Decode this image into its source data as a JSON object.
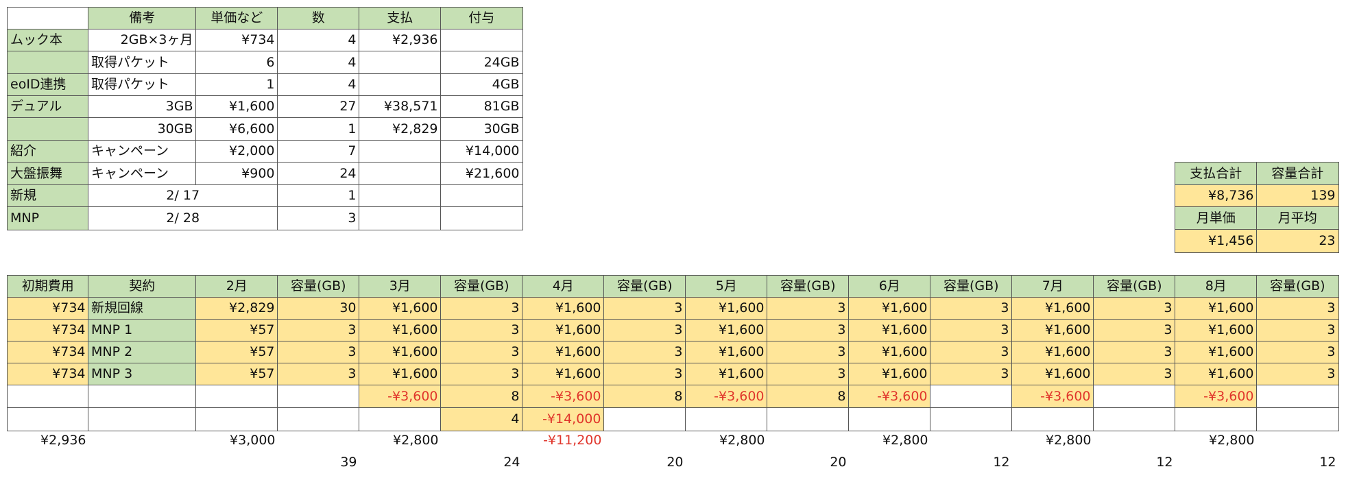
{
  "top_table": {
    "columns": [
      "備考",
      "単価など",
      "数",
      "支払",
      "付与"
    ],
    "rows": [
      [
        "ムック本",
        "2GB×3ヶ月",
        "¥734",
        4,
        "¥2,936",
        null
      ],
      [
        null,
        "取得パケット",
        6,
        4,
        null,
        "24GB"
      ],
      [
        "eoID連携",
        "取得パケット",
        1,
        4,
        null,
        "4GB"
      ],
      [
        "デュアル",
        "3GB",
        "¥1,600",
        27,
        "¥38,571",
        "81GB"
      ],
      [
        null,
        "30GB",
        "¥6,600",
        1,
        "¥2,829",
        "30GB"
      ],
      [
        "紹介",
        "キャンペーン",
        "¥2,000",
        7,
        null,
        "¥14,000"
      ],
      [
        "大盤振舞",
        "キャンペーン",
        "¥900",
        24,
        null,
        "¥21,600"
      ],
      [
        "新規",
        "2/ 17",
        null,
        1,
        null,
        null
      ],
      [
        "MNP",
        "2/ 28",
        null,
        3,
        null,
        null
      ]
    ]
  },
  "summary": {
    "rows": [
      [
        "支払合計",
        "容量合計"
      ],
      [
        "¥8,736",
        139
      ],
      [
        "月単価",
        "月平均"
      ],
      [
        "¥1,456",
        23
      ]
    ]
  },
  "plan_table": {
    "header": [
      "初期費用",
      "契約",
      "2月",
      "容量(GB)",
      "3月",
      "容量(GB)",
      "4月",
      "容量(GB)",
      "5月",
      "容量(GB)",
      "6月",
      "容量(GB)",
      "7月",
      "容量(GB)",
      "8月",
      "容量(GB)"
    ],
    "rows": [
      [
        "¥734",
        "新規回線",
        "¥2,829",
        30,
        "¥1,600",
        3,
        "¥1,600",
        3,
        "¥1,600",
        3,
        "¥1,600",
        3,
        "¥1,600",
        3,
        "¥1,600",
        3
      ],
      [
        "¥734",
        "MNP 1",
        "¥57",
        3,
        "¥1,600",
        3,
        "¥1,600",
        3,
        "¥1,600",
        3,
        "¥1,600",
        3,
        "¥1,600",
        3,
        "¥1,600",
        3
      ],
      [
        "¥734",
        "MNP 2",
        "¥57",
        3,
        "¥1,600",
        3,
        "¥1,600",
        3,
        "¥1,600",
        3,
        "¥1,600",
        3,
        "¥1,600",
        3,
        "¥1,600",
        3
      ],
      [
        "¥734",
        "MNP 3",
        "¥57",
        3,
        "¥1,600",
        3,
        "¥1,600",
        3,
        "¥1,600",
        3,
        "¥1,600",
        3,
        "¥1,600",
        3,
        "¥1,600",
        3
      ],
      [
        null,
        null,
        null,
        null,
        "-¥3,600",
        8,
        "-¥3,600",
        8,
        "-¥3,600",
        8,
        "-¥3,600",
        null,
        "-¥3,600",
        null,
        "-¥3,600",
        null
      ],
      [
        null,
        null,
        null,
        null,
        null,
        4,
        "-¥14,000",
        null,
        null,
        null,
        null,
        null,
        null,
        null,
        null,
        null
      ]
    ],
    "totals": [
      [
        "¥2,936",
        null,
        "¥3,000",
        null,
        "¥2,800",
        null,
        "-¥11,200",
        null,
        "¥2,800",
        null,
        "¥2,800",
        null,
        "¥2,800",
        null,
        "¥2,800",
        null
      ],
      [
        null,
        null,
        null,
        39,
        null,
        24,
        null,
        20,
        null,
        20,
        null,
        12,
        null,
        12,
        null,
        12
      ]
    ]
  }
}
